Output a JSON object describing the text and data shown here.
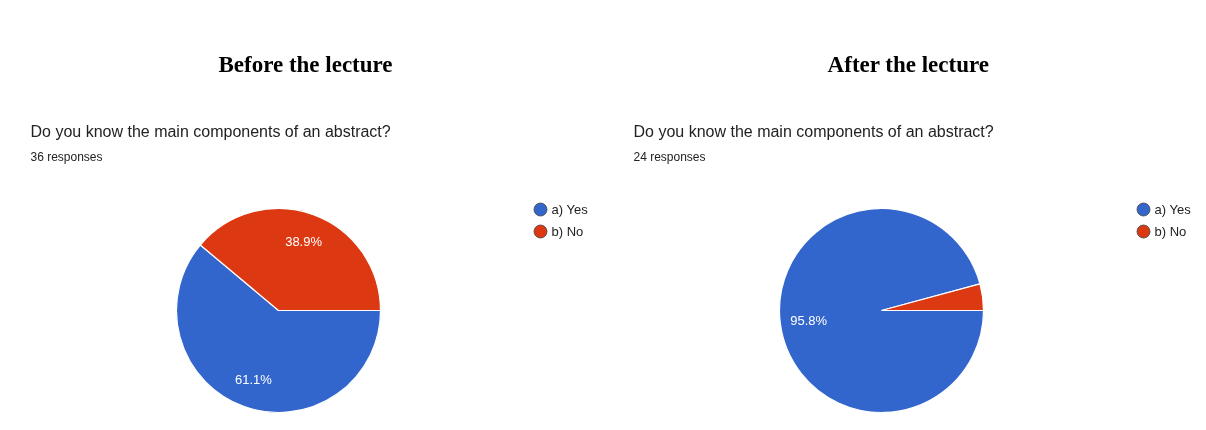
{
  "chart_data": [
    {
      "type": "pie",
      "title": "Before the lecture",
      "subtitle": "Do you know the main components of an abstract?",
      "annotations": [
        "36 responses"
      ],
      "categories": [
        "a) Yes",
        "b) No"
      ],
      "values": [
        61.1,
        38.9
      ],
      "colors": [
        "#3366cc",
        "#dc3912"
      ],
      "value_labels": [
        "61.1%",
        "38.9%"
      ],
      "legend": "right"
    },
    {
      "type": "pie",
      "title": "After the lecture",
      "subtitle": "Do you know the main components of an abstract?",
      "annotations": [
        "24 responses"
      ],
      "categories": [
        "a) Yes",
        "b) No"
      ],
      "values": [
        95.8,
        4.2
      ],
      "colors": [
        "#3366cc",
        "#dc3912"
      ],
      "value_labels": [
        "95.8%",
        null
      ],
      "legend": "right"
    }
  ]
}
